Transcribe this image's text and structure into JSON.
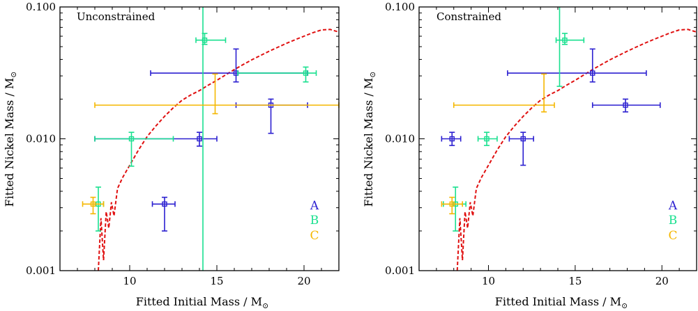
{
  "colors": {
    "A": "#2b1fd0",
    "B": "#19e08f",
    "C": "#f5b700",
    "curve": "#e01010"
  },
  "chart_data": [
    {
      "type": "scatter",
      "title": "Unconstrained",
      "xlabel": "Fitted Initial Mass / M",
      "xlabel_sub": "⊙",
      "ylabel": "Fitted Nickel Mass / M",
      "ylabel_sub": "⊙",
      "xlim": [
        6,
        22
      ],
      "ylim": [
        0.001,
        0.1
      ],
      "yscale": "log",
      "xticks": [
        10,
        15,
        20
      ],
      "yticks": [
        0.001,
        0.01,
        0.1
      ],
      "ytick_labels": [
        "0.001",
        "0.010",
        "0.100"
      ],
      "legend": [
        "A",
        "B",
        "C"
      ],
      "series": [
        {
          "name": "A",
          "points": [
            {
              "x": 16.1,
              "y": 0.0315,
              "xerr": [
                11.2,
                20.2
              ],
              "yerr": [
                0.027,
                0.048
              ]
            },
            {
              "x": 18.1,
              "y": 0.018,
              "xerr": [
                16.1,
                20.2
              ],
              "yerr": [
                0.011,
                0.02
              ]
            },
            {
              "x": 14.0,
              "y": 0.01,
              "xerr": [
                8.0,
                15.0
              ],
              "yerr": [
                0.0088,
                0.0112
              ]
            },
            {
              "x": 12.0,
              "y": 0.0032,
              "xerr": [
                11.3,
                12.6
              ],
              "yerr": [
                0.002,
                0.0036
              ]
            }
          ]
        },
        {
          "name": "B",
          "points": [
            {
              "x": 14.3,
              "y": 0.056,
              "xerr": [
                13.8,
                15.5
              ],
              "yerr": [
                0.052,
                0.063
              ]
            },
            {
              "x": 20.1,
              "y": 0.0315,
              "xerr": [
                16.2,
                20.7
              ],
              "yerr": [
                0.027,
                0.035
              ]
            },
            {
              "x": 10.1,
              "y": 0.01,
              "xerr": [
                8.0,
                12.5
              ],
              "yerr": [
                0.0062,
                0.0112
              ]
            },
            {
              "x": 8.2,
              "y": 0.0032,
              "xerr": [
                7.9,
                8.5
              ],
              "yerr": [
                0.002,
                0.0043
              ]
            },
            {
              "x": 14.2,
              "y": 0.056,
              "xerr": [
                14.2,
                14.2
              ],
              "yerr": [
                0.001,
                0.1
              ]
            }
          ]
        },
        {
          "name": "C",
          "points": [
            {
              "x": 14.9,
              "y": 0.0315,
              "xerr": [
                14.9,
                14.9
              ],
              "yerr": [
                0.0155,
                0.031
              ]
            },
            {
              "x": 14.9,
              "y": 0.018,
              "xerr": [
                8.0,
                22.0
              ],
              "yerr": [
                0.018,
                0.018
              ]
            },
            {
              "x": 7.9,
              "y": 0.0032,
              "xerr": [
                7.3,
                8.5
              ],
              "yerr": [
                0.0027,
                0.0036
              ]
            }
          ]
        }
      ],
      "curve": {
        "name": "model",
        "x": [
          8.2,
          8.35,
          8.5,
          8.65,
          8.8,
          8.95,
          9.1,
          9.3,
          9.6,
          10.0,
          10.5,
          11.0,
          11.5,
          12.0,
          12.5,
          13.0,
          13.5,
          14.0,
          14.5,
          15.0,
          15.5,
          16.0,
          16.5,
          17.0,
          17.5,
          18.0,
          18.5,
          19.0,
          19.5,
          20.0,
          20.5,
          21.0,
          21.5,
          22.0
        ],
        "y": [
          0.001,
          0.0025,
          0.0012,
          0.0028,
          0.0021,
          0.0033,
          0.0026,
          0.0042,
          0.0051,
          0.0063,
          0.0082,
          0.0104,
          0.0125,
          0.0148,
          0.0172,
          0.0196,
          0.0215,
          0.0232,
          0.0255,
          0.0278,
          0.0305,
          0.0335,
          0.0365,
          0.0397,
          0.0428,
          0.0462,
          0.0495,
          0.053,
          0.0565,
          0.06,
          0.0637,
          0.067,
          0.0675,
          0.0645
        ]
      }
    },
    {
      "type": "scatter",
      "title": "Constrained",
      "xlabel": "Fitted Initial Mass / M",
      "xlabel_sub": "⊙",
      "ylabel": "Fitted Nickel Mass / M",
      "ylabel_sub": "⊙",
      "xlim": [
        6,
        22
      ],
      "ylim": [
        0.001,
        0.1
      ],
      "yscale": "log",
      "xticks": [
        10,
        15,
        20
      ],
      "yticks": [
        0.001,
        0.01,
        0.1
      ],
      "ytick_labels": [
        "0.001",
        "0.010",
        "0.100"
      ],
      "legend": [
        "A",
        "B",
        "C"
      ],
      "series": [
        {
          "name": "A",
          "points": [
            {
              "x": 16.0,
              "y": 0.0315,
              "xerr": [
                11.1,
                19.1
              ],
              "yerr": [
                0.027,
                0.048
              ]
            },
            {
              "x": 17.9,
              "y": 0.018,
              "xerr": [
                16.0,
                19.9
              ],
              "yerr": [
                0.016,
                0.02
              ]
            },
            {
              "x": 12.0,
              "y": 0.01,
              "xerr": [
                11.2,
                12.6
              ],
              "yerr": [
                0.0063,
                0.0112
              ]
            },
            {
              "x": 7.9,
              "y": 0.01,
              "xerr": [
                7.3,
                8.4
              ],
              "yerr": [
                0.0089,
                0.0112
              ]
            }
          ]
        },
        {
          "name": "B",
          "points": [
            {
              "x": 14.4,
              "y": 0.056,
              "xerr": [
                13.9,
                15.5
              ],
              "yerr": [
                0.052,
                0.063
              ]
            },
            {
              "x": 14.1,
              "y": 0.056,
              "xerr": [
                14.1,
                14.1
              ],
              "yerr": [
                0.025,
                0.1
              ]
            },
            {
              "x": 9.9,
              "y": 0.01,
              "xerr": [
                9.4,
                10.5
              ],
              "yerr": [
                0.0089,
                0.0112
              ]
            },
            {
              "x": 8.1,
              "y": 0.0032,
              "xerr": [
                7.4,
                8.7
              ],
              "yerr": [
                0.002,
                0.0043
              ]
            }
          ]
        },
        {
          "name": "C",
          "points": [
            {
              "x": 13.2,
              "y": 0.0315,
              "xerr": [
                13.2,
                13.2
              ],
              "yerr": [
                0.016,
                0.031
              ]
            },
            {
              "x": 13.2,
              "y": 0.018,
              "xerr": [
                8.0,
                13.8
              ],
              "yerr": [
                0.018,
                0.018
              ]
            },
            {
              "x": 7.9,
              "y": 0.0032,
              "xerr": [
                7.3,
                8.5
              ],
              "yerr": [
                0.0027,
                0.0036
              ]
            }
          ]
        }
      ],
      "curve": {
        "name": "model",
        "x": [
          8.2,
          8.35,
          8.5,
          8.65,
          8.8,
          8.95,
          9.1,
          9.3,
          9.6,
          10.0,
          10.5,
          11.0,
          11.5,
          12.0,
          12.5,
          13.0,
          13.5,
          14.0,
          14.5,
          15.0,
          15.5,
          16.0,
          16.5,
          17.0,
          17.5,
          18.0,
          18.5,
          19.0,
          19.5,
          20.0,
          20.5,
          21.0,
          21.5,
          22.0
        ],
        "y": [
          0.001,
          0.0025,
          0.0012,
          0.0028,
          0.0021,
          0.0033,
          0.0026,
          0.0042,
          0.0051,
          0.0063,
          0.0082,
          0.0104,
          0.0125,
          0.0148,
          0.0172,
          0.0196,
          0.0215,
          0.0232,
          0.0255,
          0.0278,
          0.0305,
          0.0335,
          0.0365,
          0.0397,
          0.0428,
          0.0462,
          0.0495,
          0.053,
          0.0565,
          0.06,
          0.0637,
          0.067,
          0.0675,
          0.0645
        ]
      }
    }
  ]
}
